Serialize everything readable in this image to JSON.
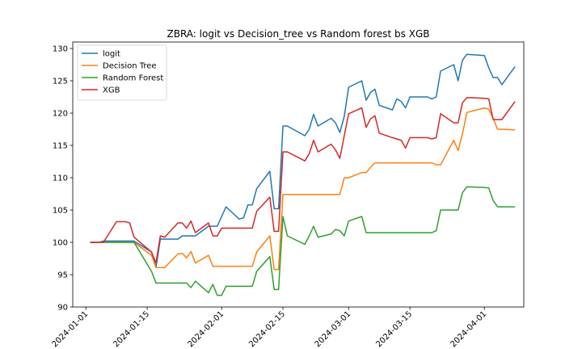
{
  "chart_data": {
    "type": "line",
    "title": "ZBRA: logit vs Decision_tree vs Random forest bs XGB",
    "xlabel": "",
    "ylabel": "",
    "xlim": [
      "2023-12-29",
      "2024-04-10"
    ],
    "ylim": [
      90,
      131
    ],
    "grid": false,
    "legend_position": "top-left",
    "x_ticks": [
      "2024-01-01",
      "2024-01-15",
      "2024-02-01",
      "2024-02-15",
      "2024-03-01",
      "2024-03-15",
      "2024-04-01"
    ],
    "y_ticks": [
      90,
      95,
      100,
      105,
      110,
      115,
      120,
      125,
      130
    ],
    "x": [
      "2024-01-02",
      "2024-01-03",
      "2024-01-04",
      "2024-01-05",
      "2024-01-08",
      "2024-01-09",
      "2024-01-10",
      "2024-01-11",
      "2024-01-12",
      "2024-01-16",
      "2024-01-17",
      "2024-01-18",
      "2024-01-19",
      "2024-01-22",
      "2024-01-23",
      "2024-01-24",
      "2024-01-25",
      "2024-01-26",
      "2024-01-29",
      "2024-01-30",
      "2024-01-31",
      "2024-02-01",
      "2024-02-02",
      "2024-02-05",
      "2024-02-06",
      "2024-02-07",
      "2024-02-08",
      "2024-02-09",
      "2024-02-12",
      "2024-02-13",
      "2024-02-14",
      "2024-02-15",
      "2024-02-16",
      "2024-02-20",
      "2024-02-21",
      "2024-02-22",
      "2024-02-23",
      "2024-02-26",
      "2024-02-27",
      "2024-02-28",
      "2024-02-29",
      "2024-03-01",
      "2024-03-04",
      "2024-03-05",
      "2024-03-06",
      "2024-03-07",
      "2024-03-08",
      "2024-03-11",
      "2024-03-12",
      "2024-03-13",
      "2024-03-14",
      "2024-03-15",
      "2024-03-18",
      "2024-03-19",
      "2024-03-20",
      "2024-03-21",
      "2024-03-22",
      "2024-03-25",
      "2024-03-26",
      "2024-03-27",
      "2024-03-28",
      "2024-04-01",
      "2024-04-02",
      "2024-04-03",
      "2024-04-04",
      "2024-04-05",
      "2024-04-08"
    ],
    "series": [
      {
        "name": "logit",
        "color": "#1f77b4",
        "values": [
          100.0,
          100.0,
          100.0,
          100.2,
          100.2,
          100.2,
          100.2,
          100.2,
          100.2,
          98.5,
          96.1,
          100.5,
          100.5,
          100.5,
          101.0,
          101.0,
          101.0,
          101.0,
          102.5,
          102.5,
          102.5,
          104.0,
          105.5,
          103.6,
          103.8,
          105.8,
          105.8,
          108.3,
          111.0,
          105.2,
          105.2,
          118.0,
          118.0,
          116.5,
          117.5,
          119.8,
          118.0,
          119.2,
          118.5,
          117.0,
          119.5,
          124.0,
          125.0,
          122.0,
          123.2,
          123.7,
          121.2,
          120.5,
          122.2,
          121.8,
          120.8,
          122.5,
          122.5,
          122.5,
          122.2,
          122.5,
          126.5,
          127.5,
          125.0,
          128.2,
          129.1,
          128.9,
          127.0,
          125.5,
          125.5,
          124.4,
          127.2
        ]
      },
      {
        "name": "Decision Tree",
        "color": "#ff7f0e",
        "values": [
          100.0,
          100.0,
          100.0,
          100.0,
          100.0,
          100.0,
          100.0,
          100.0,
          100.0,
          98.0,
          96.1,
          96.1,
          96.1,
          98.2,
          98.3,
          97.6,
          98.6,
          96.8,
          98.0,
          96.3,
          96.3,
          96.3,
          96.3,
          96.3,
          96.3,
          96.3,
          96.3,
          98.5,
          101.0,
          95.8,
          95.8,
          107.4,
          107.4,
          107.4,
          107.4,
          107.4,
          107.4,
          107.4,
          107.4,
          107.4,
          110.0,
          110.0,
          110.8,
          110.8,
          111.6,
          112.3,
          112.3,
          112.3,
          112.3,
          112.3,
          112.3,
          112.3,
          112.3,
          112.3,
          112.3,
          112.0,
          112.0,
          115.8,
          114.2,
          116.8,
          120.1,
          120.8,
          120.6,
          119.2,
          117.5,
          117.5,
          117.4
        ]
      },
      {
        "name": "Random Forest",
        "color": "#2ca02c",
        "values": [
          100.0,
          100.0,
          100.0,
          100.0,
          100.0,
          100.0,
          100.0,
          100.0,
          100.0,
          95.5,
          93.7,
          93.7,
          93.7,
          93.7,
          93.7,
          93.7,
          93.0,
          94.0,
          92.2,
          93.5,
          91.8,
          91.8,
          93.2,
          93.2,
          93.2,
          93.2,
          93.2,
          95.5,
          97.8,
          92.7,
          92.7,
          104.0,
          101.0,
          99.7,
          101.0,
          102.5,
          100.8,
          101.3,
          102.0,
          101.8,
          101.0,
          103.3,
          104.0,
          101.5,
          101.5,
          101.5,
          101.5,
          101.5,
          101.5,
          101.5,
          101.5,
          101.5,
          101.5,
          101.5,
          101.5,
          101.8,
          105.0,
          105.0,
          105.0,
          107.7,
          108.6,
          108.5,
          108.4,
          106.5,
          105.5,
          105.5,
          105.5
        ]
      },
      {
        "name": "XGB",
        "color": "#d62728",
        "values": [
          100.0,
          100.0,
          100.0,
          100.0,
          103.2,
          103.2,
          103.2,
          103.0,
          100.8,
          98.5,
          96.8,
          101.0,
          100.8,
          103.0,
          103.0,
          102.2,
          103.3,
          101.5,
          103.0,
          101.0,
          101.0,
          102.2,
          102.2,
          102.2,
          102.2,
          102.2,
          102.2,
          104.8,
          107.0,
          101.7,
          101.7,
          114.0,
          114.0,
          112.6,
          113.7,
          115.8,
          114.0,
          115.2,
          114.3,
          113.0,
          116.5,
          119.9,
          120.8,
          117.8,
          119.1,
          119.6,
          116.9,
          116.2,
          116.0,
          115.8,
          114.6,
          116.2,
          116.2,
          116.2,
          116.0,
          116.2,
          119.9,
          118.5,
          118.5,
          121.6,
          122.4,
          122.3,
          122.2,
          119.0,
          119.0,
          119.0,
          121.8
        ]
      }
    ]
  }
}
